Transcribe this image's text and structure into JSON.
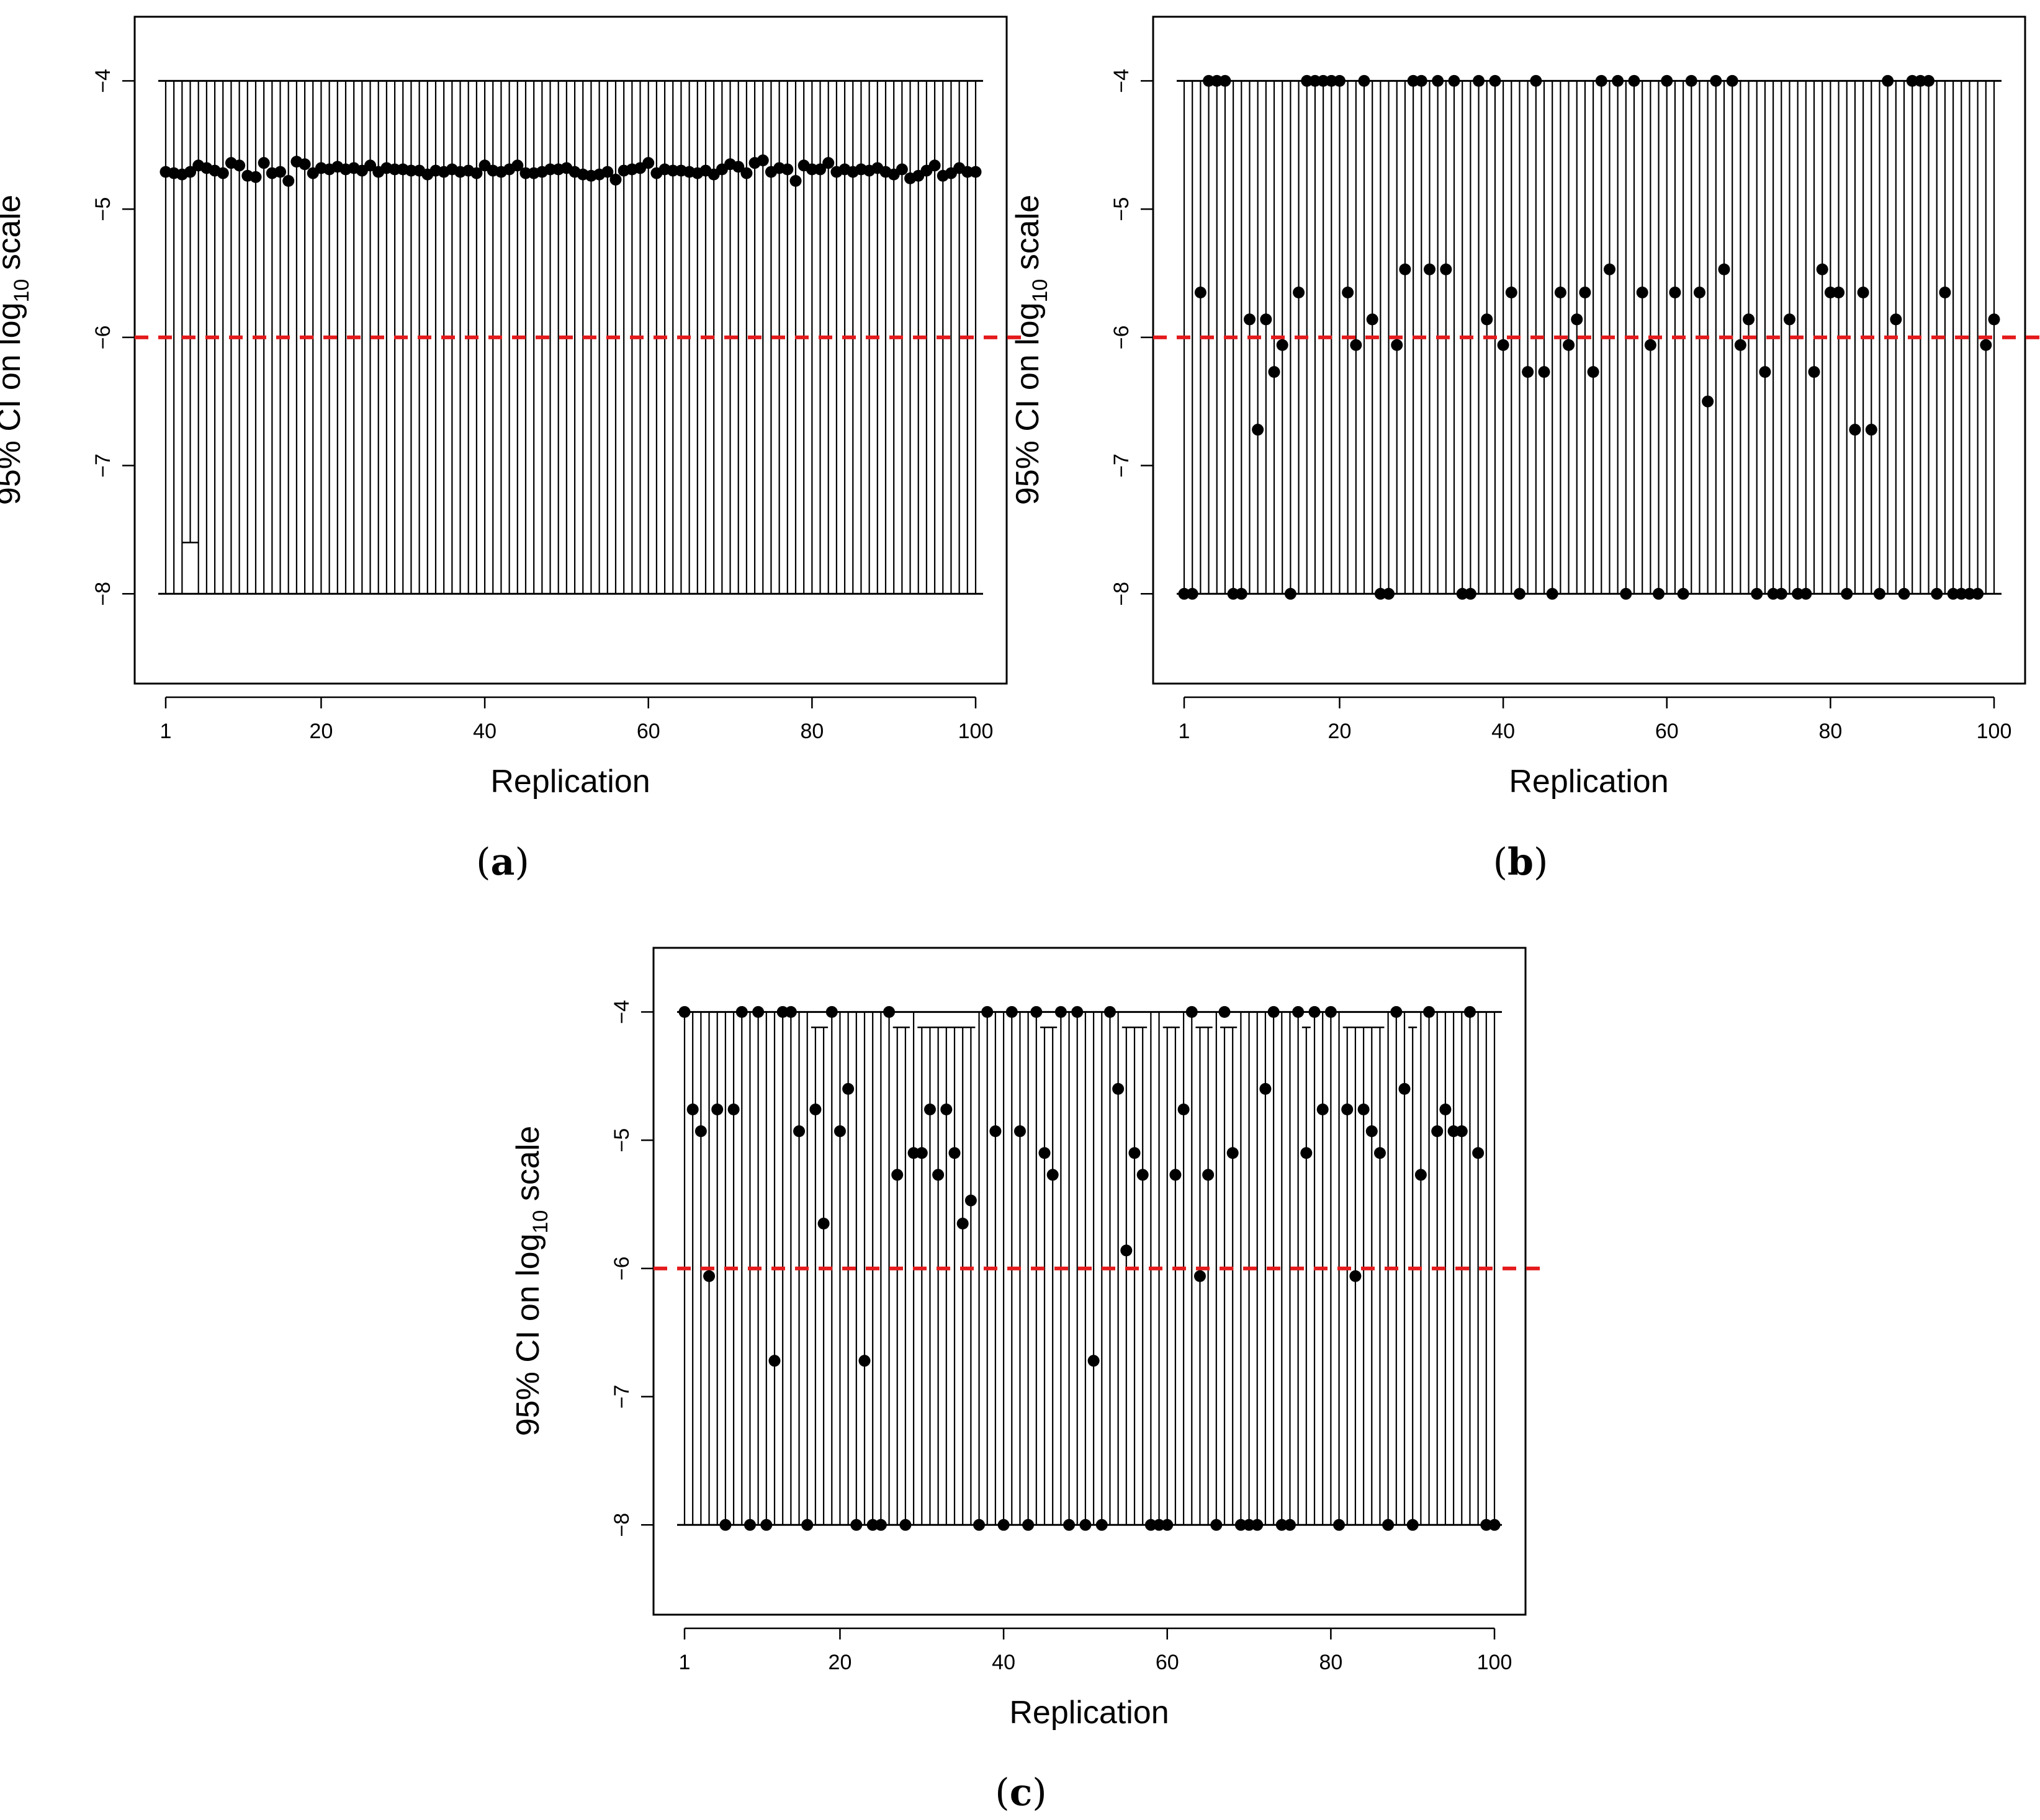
{
  "figure": {
    "reference_color": "#e41a1c",
    "line_color": "#000000",
    "point_color": "#000000"
  },
  "chart_data": [
    {
      "id": "a",
      "type": "interval",
      "panel_label": "(a)",
      "panel_letter": "a",
      "xlabel": "Replication",
      "ylabel_main": "95% CI on log",
      "ylabel_sub": "10",
      "ylabel_tail": " scale",
      "xlim": [
        1,
        100
      ],
      "ylim": [
        -8.7,
        -3.5
      ],
      "x_ticks": [
        1,
        20,
        40,
        60,
        80,
        100
      ],
      "x_tick_labels": [
        "1",
        "20",
        "40",
        "60",
        "80",
        "100"
      ],
      "y_ticks": [
        -8,
        -7,
        -6,
        -5,
        -4
      ],
      "y_tick_labels": [
        "−8",
        "−7",
        "−6",
        "−5",
        "−4"
      ],
      "reference_line": -6,
      "ci_lower": -8,
      "ci_upper": -4,
      "raised_lower_bars": [
        {
          "replication": 4,
          "lower": -7.6
        }
      ],
      "dropped_upper_bars": [],
      "estimates": [
        -4.71,
        -4.72,
        -4.73,
        -4.71,
        -4.66,
        -4.68,
        -4.7,
        -4.72,
        -4.64,
        -4.66,
        -4.74,
        -4.75,
        -4.64,
        -4.72,
        -4.71,
        -4.78,
        -4.63,
        -4.65,
        -4.72,
        -4.68,
        -4.69,
        -4.67,
        -4.69,
        -4.68,
        -4.7,
        -4.66,
        -4.71,
        -4.68,
        -4.69,
        -4.69,
        -4.7,
        -4.7,
        -4.73,
        -4.7,
        -4.71,
        -4.69,
        -4.71,
        -4.7,
        -4.72,
        -4.66,
        -4.7,
        -4.71,
        -4.69,
        -4.66,
        -4.72,
        -4.72,
        -4.71,
        -4.69,
        -4.69,
        -4.68,
        -4.71,
        -4.73,
        -4.74,
        -4.73,
        -4.71,
        -4.77,
        -4.7,
        -4.69,
        -4.68,
        -4.64,
        -4.72,
        -4.69,
        -4.7,
        -4.7,
        -4.71,
        -4.72,
        -4.7,
        -4.73,
        -4.69,
        -4.65,
        -4.67,
        -4.72,
        -4.64,
        -4.62,
        -4.71,
        -4.68,
        -4.69,
        -4.78,
        -4.66,
        -4.69,
        -4.69,
        -4.64,
        -4.71,
        -4.69,
        -4.71,
        -4.69,
        -4.7,
        -4.68,
        -4.71,
        -4.73,
        -4.69,
        -4.76,
        -4.74,
        -4.7,
        -4.66,
        -4.74,
        -4.72,
        -4.68,
        -4.71,
        -4.71
      ]
    },
    {
      "id": "b",
      "type": "interval",
      "panel_label": "(b)",
      "panel_letter": "b",
      "xlabel": "Replication",
      "ylabel_main": "95% CI on log",
      "ylabel_sub": "10",
      "ylabel_tail": " scale",
      "xlim": [
        1,
        100
      ],
      "ylim": [
        -8.7,
        -3.5
      ],
      "x_ticks": [
        1,
        20,
        40,
        60,
        80,
        100
      ],
      "x_tick_labels": [
        "1",
        "20",
        "40",
        "60",
        "80",
        "100"
      ],
      "y_ticks": [
        -8,
        -7,
        -6,
        -5,
        -4
      ],
      "y_tick_labels": [
        "−8",
        "−7",
        "−6",
        "−5",
        "−4"
      ],
      "reference_line": -6,
      "ci_lower": -8,
      "ci_upper": -4,
      "raised_lower_bars": [],
      "dropped_upper_bars": [],
      "estimates": [
        -8,
        -8,
        -5.65,
        -4,
        -4,
        -4,
        -8,
        -8,
        -5.86,
        -6.72,
        -5.86,
        -6.27,
        -6.06,
        -8,
        -5.65,
        -4,
        -4,
        -4,
        -4,
        -4,
        -5.65,
        -6.06,
        -4,
        -5.86,
        -8,
        -8,
        -6.06,
        -5.47,
        -4,
        -4,
        -5.47,
        -4,
        -5.47,
        -4,
        -8,
        -8,
        -4,
        -5.86,
        -4,
        -6.06,
        -5.65,
        -8,
        -6.27,
        -4,
        -6.27,
        -8,
        -5.65,
        -6.06,
        -5.86,
        -5.65,
        -6.27,
        -4,
        -5.47,
        -4,
        -8,
        -4,
        -5.65,
        -6.06,
        -8,
        -4,
        -5.65,
        -8,
        -4,
        -5.65,
        -6.5,
        -4,
        -5.47,
        -4,
        -6.06,
        -5.86,
        -8,
        -6.27,
        -8,
        -8,
        -5.86,
        -8,
        -8,
        -6.27,
        -5.47,
        -5.65,
        -5.65,
        -8,
        -6.72,
        -5.65,
        -6.72,
        -8,
        -4,
        -5.86,
        -8,
        -4,
        -4,
        -4,
        -8,
        -5.65,
        -8,
        -8,
        -8,
        -8,
        -6.06,
        -5.86
      ]
    },
    {
      "id": "c",
      "type": "interval",
      "panel_label": "(c)",
      "panel_letter": "c",
      "xlabel": "Replication",
      "ylabel_main": "95% CI on log",
      "ylabel_sub": "10",
      "ylabel_tail": " scale",
      "xlim": [
        1,
        100
      ],
      "ylim": [
        -8.7,
        -3.5
      ],
      "x_ticks": [
        1,
        20,
        40,
        60,
        80,
        100
      ],
      "x_tick_labels": [
        "1",
        "20",
        "40",
        "60",
        "80",
        "100"
      ],
      "y_ticks": [
        -8,
        -7,
        -6,
        -5,
        -4
      ],
      "y_tick_labels": [
        "−8",
        "−7",
        "−6",
        "−5",
        "−4"
      ],
      "reference_line": -6,
      "ci_lower": -8,
      "ci_upper": -4,
      "raised_lower_bars": [],
      "dropped_upper_bars": [
        {
          "replication": 17,
          "upper": -4.12
        },
        {
          "replication": 18,
          "upper": -4.12
        },
        {
          "replication": 27,
          "upper": -4.12
        },
        {
          "replication": 28,
          "upper": -4.12
        },
        {
          "replication": 30,
          "upper": -4.12
        },
        {
          "replication": 31,
          "upper": -4.12
        },
        {
          "replication": 32,
          "upper": -4.12
        },
        {
          "replication": 33,
          "upper": -4.12
        },
        {
          "replication": 34,
          "upper": -4.12
        },
        {
          "replication": 35,
          "upper": -4.12
        },
        {
          "replication": 36,
          "upper": -4.12
        },
        {
          "replication": 45,
          "upper": -4.12
        },
        {
          "replication": 46,
          "upper": -4.12
        },
        {
          "replication": 55,
          "upper": -4.12
        },
        {
          "replication": 56,
          "upper": -4.12
        },
        {
          "replication": 57,
          "upper": -4.12
        },
        {
          "replication": 60,
          "upper": -4.12
        },
        {
          "replication": 61,
          "upper": -4.12
        },
        {
          "replication": 64,
          "upper": -4.12
        },
        {
          "replication": 65,
          "upper": -4.12
        },
        {
          "replication": 67,
          "upper": -4.12
        },
        {
          "replication": 68,
          "upper": -4.12
        },
        {
          "replication": 77,
          "upper": -4.12
        },
        {
          "replication": 82,
          "upper": -4.12
        },
        {
          "replication": 83,
          "upper": -4.12
        },
        {
          "replication": 84,
          "upper": -4.12
        },
        {
          "replication": 85,
          "upper": -4.12
        },
        {
          "replication": 86,
          "upper": -4.12
        },
        {
          "replication": 90,
          "upper": -4.12
        }
      ],
      "estimates": [
        -4,
        -4.76,
        -4.93,
        -6.06,
        -4.76,
        -8,
        -4.76,
        -4,
        -8,
        -4,
        -8,
        -6.72,
        -4,
        -4,
        -4.93,
        -8,
        -4.76,
        -5.65,
        -4,
        -4.93,
        -4.6,
        -8,
        -6.72,
        -8,
        -8,
        -4,
        -5.27,
        -8,
        -5.1,
        -5.1,
        -4.76,
        -5.27,
        -4.76,
        -5.1,
        -5.65,
        -5.47,
        -8,
        -4,
        -4.93,
        -8,
        -4,
        -4.93,
        -8,
        -4,
        -5.1,
        -5.27,
        -4,
        -8,
        -4,
        -8,
        -6.72,
        -8,
        -4,
        -4.6,
        -5.86,
        -5.1,
        -5.27,
        -8,
        -8,
        -8,
        -5.27,
        -4.76,
        -4,
        -6.06,
        -5.27,
        -8,
        -4,
        -5.1,
        -8,
        -8,
        -8,
        -4.6,
        -4,
        -8,
        -8,
        -4,
        -5.1,
        -4,
        -4.76,
        -4,
        -8,
        -4.76,
        -6.06,
        -4.76,
        -4.93,
        -5.1,
        -8,
        -4,
        -4.6,
        -8,
        -5.27,
        -4,
        -4.93,
        -4.76,
        -4.93,
        -4.93,
        -4,
        -5.1,
        -8,
        -8
      ]
    }
  ]
}
